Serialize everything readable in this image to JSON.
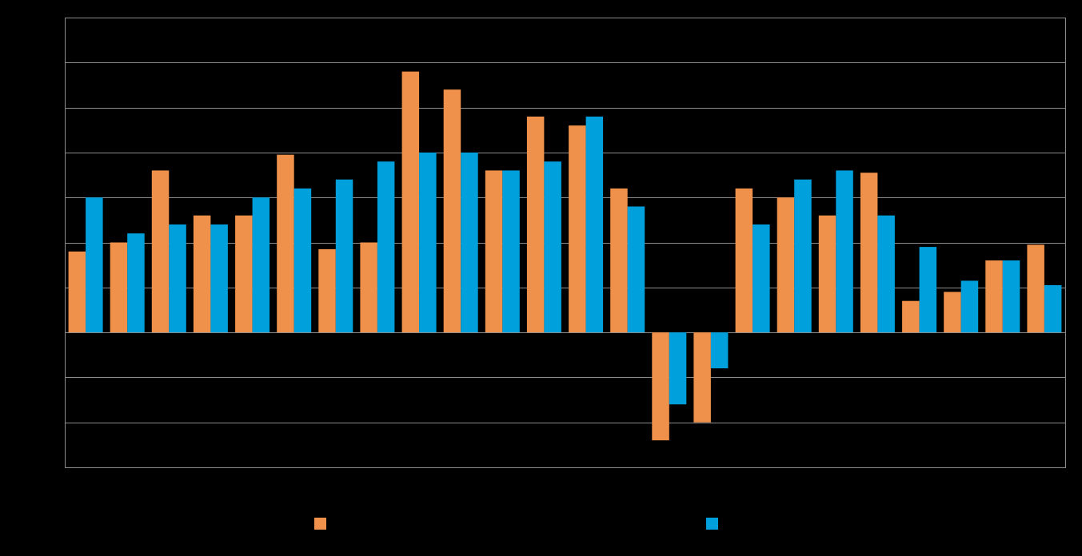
{
  "colors": {
    "background": "#000000",
    "gridline": "#8c8c8c",
    "plot_border": "#8c8c8c",
    "series_1": "#f0914b",
    "series_2": "#00a0dc"
  },
  "chart_data": {
    "type": "bar",
    "title": "",
    "xlabel": "",
    "ylabel": "",
    "grid": true,
    "legend_placement": "bottom",
    "ylim": [
      -3,
      7
    ],
    "yticks": [
      -3,
      -2,
      -1,
      0,
      1,
      2,
      3,
      4,
      5,
      6,
      7
    ],
    "categories": [
      "",
      "",
      "",
      "",
      "",
      "",
      "",
      "",
      "",
      "",
      "",
      "",
      "",
      "",
      "",
      "",
      "",
      "",
      "",
      "",
      "",
      "",
      "",
      ""
    ],
    "series": [
      {
        "name": "",
        "color": "#f0914b",
        "values": [
          1.8,
          2.0,
          3.6,
          2.6,
          2.6,
          3.95,
          1.85,
          2.0,
          5.8,
          5.4,
          3.6,
          4.8,
          4.6,
          3.2,
          -2.4,
          -2.0,
          3.2,
          3.0,
          2.6,
          3.55,
          0.7,
          0.9,
          1.6,
          1.95
        ]
      },
      {
        "name": "",
        "color": "#00a0dc",
        "values": [
          3.0,
          2.2,
          2.4,
          2.4,
          3.0,
          3.2,
          3.4,
          3.8,
          4.0,
          4.0,
          3.6,
          3.8,
          4.8,
          2.8,
          -1.6,
          -0.8,
          2.4,
          3.4,
          3.6,
          2.6,
          1.9,
          1.15,
          1.6,
          1.05
        ]
      }
    ]
  }
}
